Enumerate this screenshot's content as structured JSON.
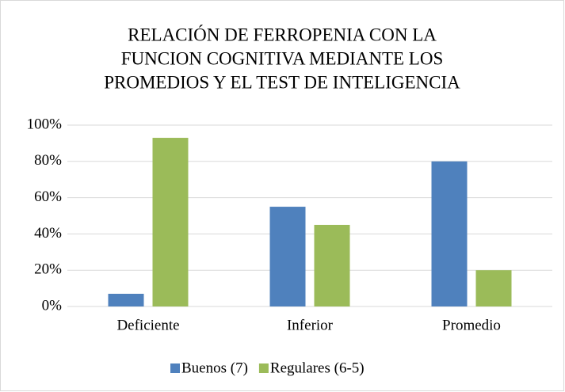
{
  "chart_data": {
    "type": "bar",
    "title": [
      "RELACIÓN DE FERROPENIA CON LA",
      "FUNCION COGNITIVA MEDIANTE LOS",
      "PROMEDIOS Y EL TEST DE INTELIGENCIA"
    ],
    "categories": [
      "Deficiente",
      "Inferior",
      "Promedio"
    ],
    "series": [
      {
        "name": "Buenos (7)",
        "color": "#4f81bd",
        "values": [
          7,
          55,
          80
        ]
      },
      {
        "name": "Regulares (6-5)",
        "color": "#9bbb59",
        "values": [
          93,
          45,
          20
        ]
      }
    ],
    "ylim": [
      0,
      100
    ],
    "yticks": [
      {
        "value": 0,
        "label": "0%"
      },
      {
        "value": 20,
        "label": "20%"
      },
      {
        "value": 40,
        "label": "40%"
      },
      {
        "value": 60,
        "label": "60%"
      },
      {
        "value": 80,
        "label": "80%"
      },
      {
        "value": 100,
        "label": "100%"
      }
    ],
    "grid": true,
    "legend": "bottom"
  }
}
